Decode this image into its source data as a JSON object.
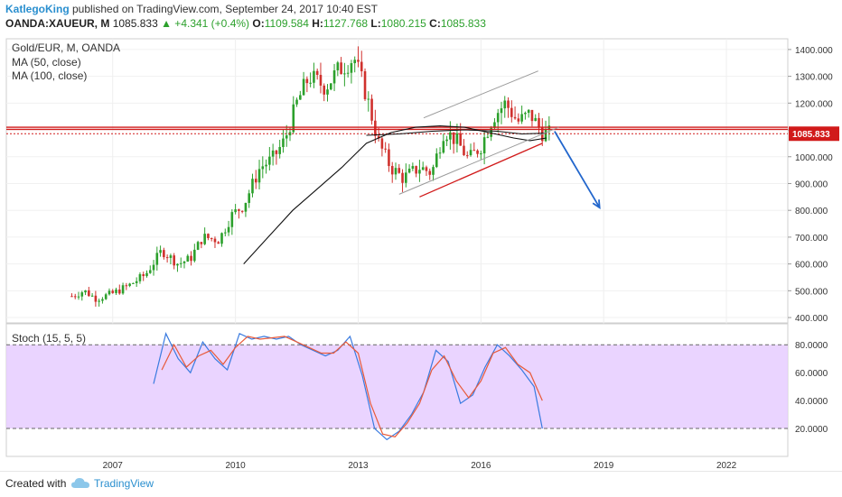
{
  "header": {
    "author": "KatlegoKing",
    "published": " published on TradingView.com, September 24, 2017 10:40 EST",
    "symbol": "OANDA:XAUEUR, M",
    "last": "1085.833",
    "change": "▲ +4.341 (+0.4%)",
    "o_label": "O:",
    "o_value": "1109.584",
    "h_label": "H:",
    "h_value": "1127.768",
    "l_label": "L:",
    "l_value": "1080.215",
    "c_label": "C:",
    "c_value": "1085.833"
  },
  "legend": {
    "title": "Gold/EUR, M, OANDA",
    "ma50": "MA (50, close)",
    "ma100": "MA (100, close)",
    "stoch": "Stoch (15, 5, 5)"
  },
  "footer": {
    "created": "Created with",
    "brand": "TradingView"
  },
  "colors": {
    "up": "#2ca02c",
    "down": "#d0312d",
    "ma": "#111111",
    "stoch_k": "#3a7be0",
    "stoch_d": "#e85a3a",
    "band": "#e6ccff",
    "resistance": "#d11a1a",
    "arrow": "#2266cc",
    "channel": "#9a9a9a"
  },
  "chart_data": [
    {
      "type": "candlestick",
      "title": "Gold/EUR, M, OANDA",
      "price_axis": [
        "1400.000",
        "1300.000",
        "1200.000",
        "1100.000",
        "1000.000",
        "900.000",
        "800.000",
        "700.000",
        "600.000",
        "500.000",
        "400.000"
      ],
      "price_range": [
        380,
        1440
      ],
      "time_axis": [
        "2007",
        "2010",
        "2013",
        "2016",
        "2019",
        "2022"
      ],
      "time_range": [
        2004.4,
        2023.5
      ],
      "last_price": 1085.833,
      "last_price_label": "1085.833",
      "resistance_levels": [
        1110,
        1102
      ],
      "dotted_level": 1085.833,
      "close_path": [
        [
          2006.0,
          480
        ],
        [
          2006.3,
          500
        ],
        [
          2006.6,
          470
        ],
        [
          2007.0,
          490
        ],
        [
          2007.4,
          520
        ],
        [
          2007.8,
          560
        ],
        [
          2008.2,
          650
        ],
        [
          2008.6,
          600
        ],
        [
          2008.9,
          620
        ],
        [
          2009.2,
          700
        ],
        [
          2009.6,
          690
        ],
        [
          2009.9,
          780
        ],
        [
          2010.2,
          820
        ],
        [
          2010.6,
          960
        ],
        [
          2010.9,
          990
        ],
        [
          2011.2,
          1060
        ],
        [
          2011.5,
          1200
        ],
        [
          2011.8,
          1300
        ],
        [
          2012.2,
          1260
        ],
        [
          2012.5,
          1320
        ],
        [
          2012.9,
          1370
        ],
        [
          2013.2,
          1230
        ],
        [
          2013.5,
          1050
        ],
        [
          2013.8,
          960
        ],
        [
          2014.1,
          920
        ],
        [
          2014.5,
          960
        ],
        [
          2014.8,
          940
        ],
        [
          2015.1,
          1100
        ],
        [
          2015.4,
          1060
        ],
        [
          2015.7,
          990
        ],
        [
          2016.0,
          1040
        ],
        [
          2016.3,
          1150
        ],
        [
          2016.6,
          1200
        ],
        [
          2016.9,
          1130
        ],
        [
          2017.2,
          1160
        ],
        [
          2017.5,
          1090
        ],
        [
          2017.7,
          1085
        ]
      ],
      "ma50": [
        [
          2010.2,
          600
        ],
        [
          2010.8,
          700
        ],
        [
          2011.4,
          800
        ],
        [
          2012.0,
          880
        ],
        [
          2012.6,
          960
        ],
        [
          2013.2,
          1050
        ],
        [
          2013.8,
          1090
        ],
        [
          2014.4,
          1110
        ],
        [
          2015.0,
          1115
        ],
        [
          2015.6,
          1110
        ],
        [
          2016.2,
          1090
        ],
        [
          2016.8,
          1070
        ],
        [
          2017.2,
          1060
        ],
        [
          2017.6,
          1070
        ]
      ],
      "ma100": [
        [
          2013.2,
          1080
        ],
        [
          2014.0,
          1085
        ],
        [
          2014.8,
          1095
        ],
        [
          2015.6,
          1100
        ],
        [
          2016.4,
          1095
        ],
        [
          2017.0,
          1085
        ],
        [
          2017.6,
          1088
        ]
      ],
      "channel_upper": [
        [
          2014.6,
          1145
        ],
        [
          2017.4,
          1320
        ]
      ],
      "channel_lower": [
        [
          2014.0,
          860
        ],
        [
          2017.9,
          1110
        ]
      ],
      "trendline": [
        [
          2014.5,
          850
        ],
        [
          2017.5,
          1050
        ]
      ],
      "projection_arrow": [
        [
          2017.8,
          1095
        ],
        [
          2018.9,
          810
        ]
      ]
    },
    {
      "type": "line",
      "title": "Stoch (15, 5, 5)",
      "y_axis": [
        "80.0000",
        "60.0000",
        "40.0000",
        "20.0000"
      ],
      "y_range": [
        0,
        95
      ],
      "band": [
        20,
        80
      ],
      "series": [
        {
          "values": [
            [
              2008.0,
              52
            ],
            [
              2008.3,
              88
            ],
            [
              2008.6,
              70
            ],
            [
              2008.9,
              60
            ],
            [
              2009.2,
              82
            ],
            [
              2009.5,
              70
            ],
            [
              2009.8,
              62
            ],
            [
              2010.1,
              88
            ],
            [
              2010.4,
              84
            ],
            [
              2010.7,
              86
            ],
            [
              2011.0,
              84
            ],
            [
              2011.3,
              86
            ],
            [
              2011.6,
              80
            ],
            [
              2011.9,
              76
            ],
            [
              2012.2,
              72
            ],
            [
              2012.5,
              76
            ],
            [
              2012.8,
              86
            ],
            [
              2013.1,
              58
            ],
            [
              2013.4,
              20
            ],
            [
              2013.7,
              12
            ],
            [
              2014.0,
              18
            ],
            [
              2014.3,
              30
            ],
            [
              2014.6,
              46
            ],
            [
              2014.9,
              76
            ],
            [
              2015.2,
              68
            ],
            [
              2015.5,
              38
            ],
            [
              2015.8,
              44
            ],
            [
              2016.1,
              64
            ],
            [
              2016.4,
              80
            ],
            [
              2016.7,
              72
            ],
            [
              2017.0,
              62
            ],
            [
              2017.3,
              50
            ],
            [
              2017.5,
              20
            ]
          ]
        },
        {
          "values": [
            [
              2008.2,
              62
            ],
            [
              2008.5,
              80
            ],
            [
              2008.8,
              64
            ],
            [
              2009.1,
              72
            ],
            [
              2009.4,
              76
            ],
            [
              2009.7,
              66
            ],
            [
              2010.0,
              78
            ],
            [
              2010.3,
              86
            ],
            [
              2010.6,
              84
            ],
            [
              2010.9,
              85
            ],
            [
              2011.2,
              86
            ],
            [
              2011.5,
              82
            ],
            [
              2011.8,
              78
            ],
            [
              2012.1,
              74
            ],
            [
              2012.4,
              74
            ],
            [
              2012.7,
              82
            ],
            [
              2013.0,
              74
            ],
            [
              2013.3,
              38
            ],
            [
              2013.6,
              16
            ],
            [
              2013.9,
              14
            ],
            [
              2014.2,
              24
            ],
            [
              2014.5,
              38
            ],
            [
              2014.8,
              62
            ],
            [
              2015.1,
              72
            ],
            [
              2015.4,
              54
            ],
            [
              2015.7,
              42
            ],
            [
              2016.0,
              54
            ],
            [
              2016.3,
              74
            ],
            [
              2016.6,
              78
            ],
            [
              2016.9,
              66
            ],
            [
              2017.2,
              60
            ],
            [
              2017.5,
              40
            ]
          ]
        }
      ]
    }
  ]
}
